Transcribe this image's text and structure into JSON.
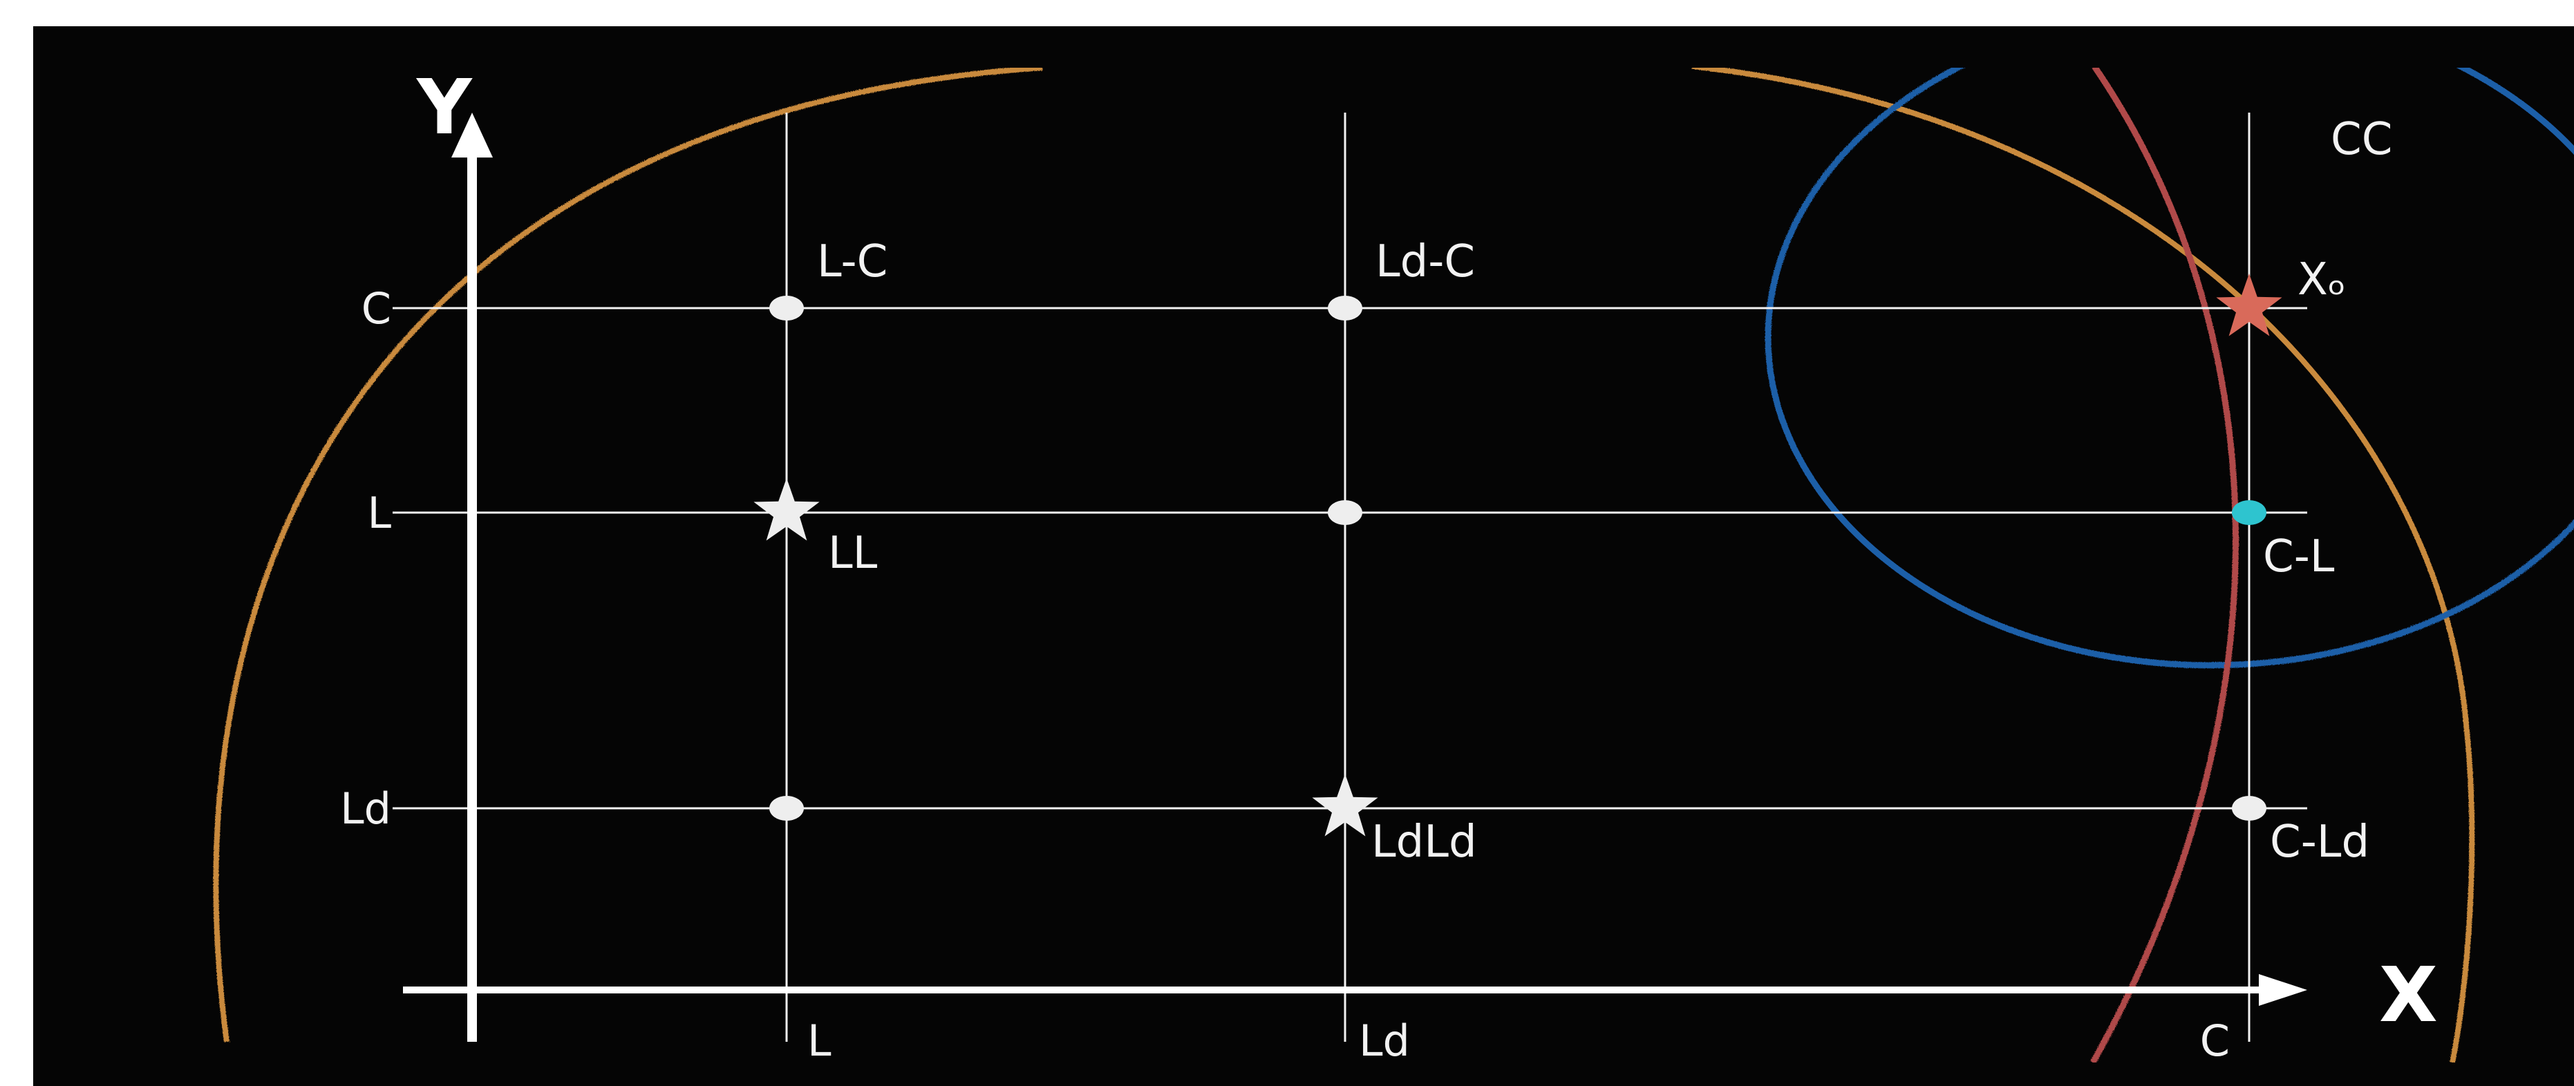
{
  "axes": {
    "x_title": "X",
    "y_title": "Y",
    "x_ticks": [
      "L",
      "Ld",
      "C"
    ],
    "y_ticks": [
      "C",
      "L",
      "Ld"
    ]
  },
  "corner_label": "CC",
  "points": [
    {
      "label": "L-C",
      "kind": "dot"
    },
    {
      "label": "Ld-C",
      "kind": "dot"
    },
    {
      "label": "Xₒ",
      "kind": "star",
      "color": "#d96a5a"
    },
    {
      "label": "LL",
      "kind": "star"
    },
    {
      "label": "",
      "kind": "dot"
    },
    {
      "label": "C-L",
      "kind": "dot",
      "color": "#2ec4cf"
    },
    {
      "label": "",
      "kind": "dot"
    },
    {
      "label": "LdLd",
      "kind": "star"
    },
    {
      "label": "C-Ld",
      "kind": "dot"
    }
  ],
  "curves": [
    {
      "name": "orange-arc",
      "color": "#c98a3c"
    },
    {
      "name": "blue-ellipse",
      "color": "#1f5fa8"
    },
    {
      "name": "red-arc",
      "color": "#b04a4a"
    }
  ],
  "colors": {
    "background": "#050505",
    "lines": "#f2f2f2",
    "dot": "#eeeeee"
  }
}
